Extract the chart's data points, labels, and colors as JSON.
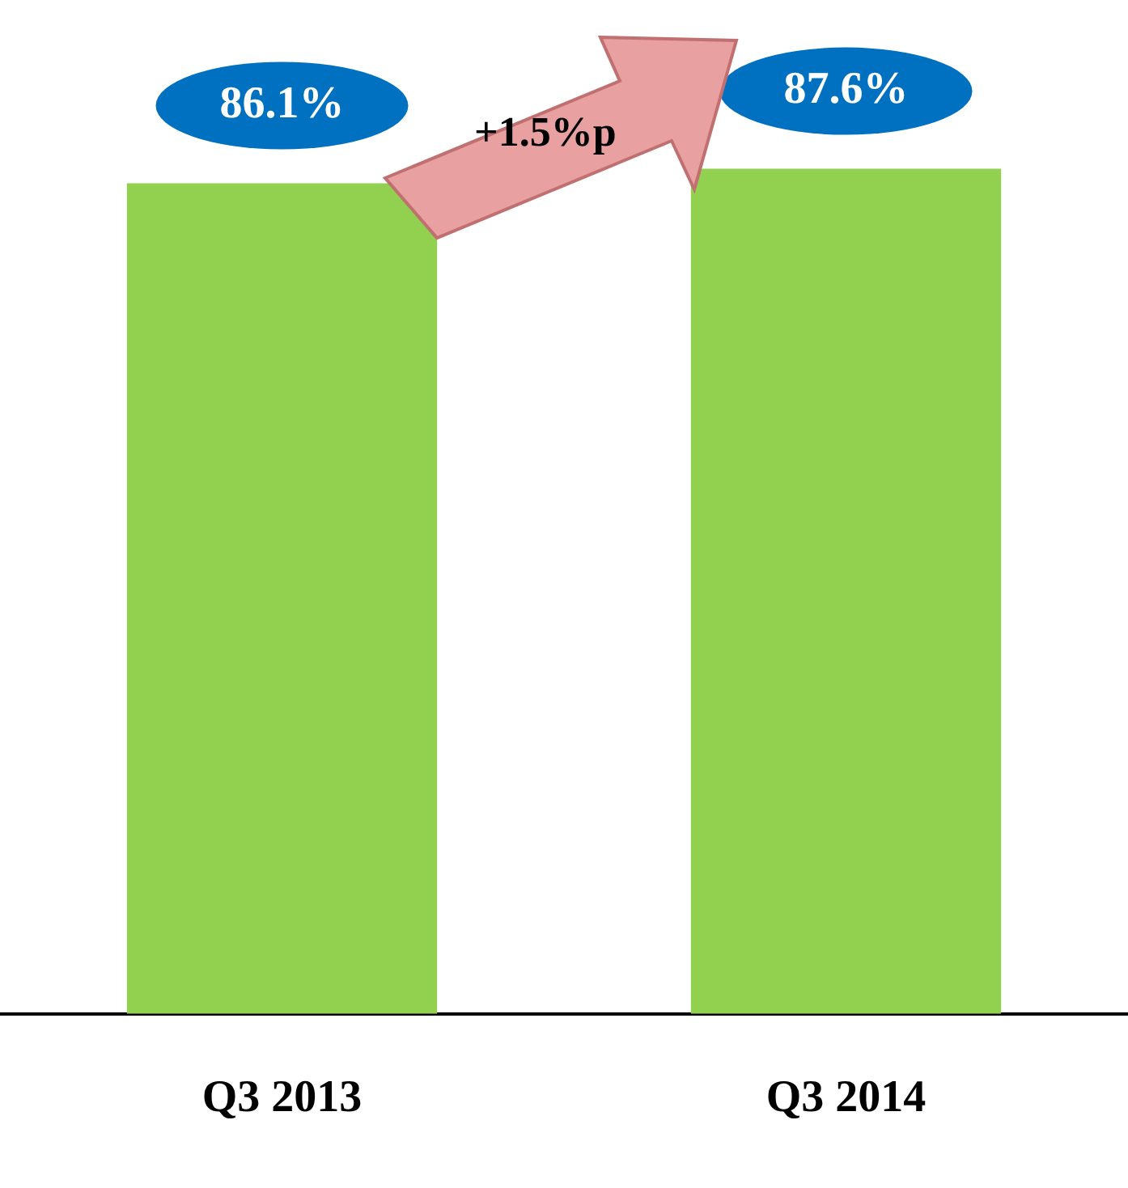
{
  "chart_data": {
    "type": "bar",
    "categories": [
      "Q3 2013",
      "Q3 2014"
    ],
    "values": [
      86.1,
      87.6
    ],
    "colors": [
      "#92d050",
      "#92d050"
    ],
    "value_labels": [
      "86.1%",
      "87.6%"
    ],
    "grid": false,
    "legend": false,
    "tick_labels": "x",
    "annotations": [
      "+1.5%p"
    ]
  }
}
